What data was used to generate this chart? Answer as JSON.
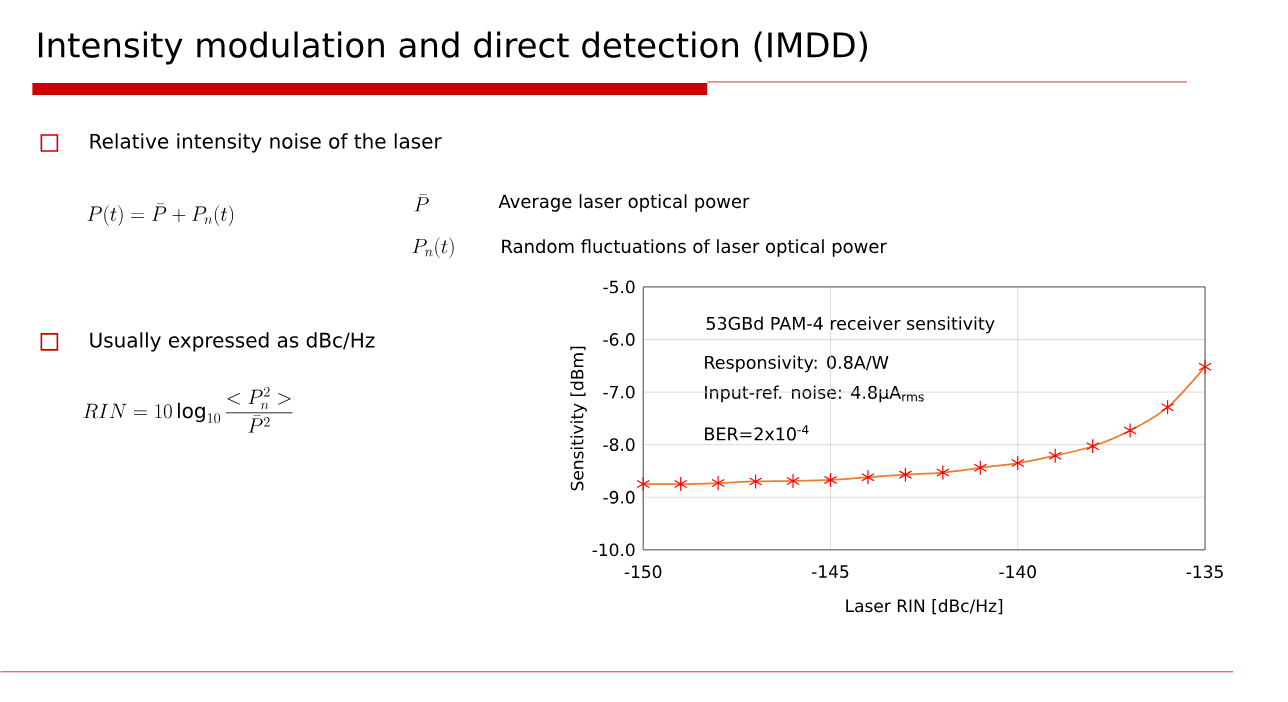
{
  "chart_data": {
    "type": "line",
    "title": "Intensity modulation and direct detection (IMDD)",
    "xlabel": "Laser RIN [dBc/Hz]",
    "ylabel": "Sensitivity [dBm]",
    "x": [
      -150,
      -149,
      -148,
      -147,
      -146,
      -145,
      -144,
      -143,
      -142,
      -141,
      -140,
      -139,
      -138,
      -137,
      -136,
      -135
    ],
    "series": [
      {
        "color": "#ed7d31",
        "colors": [
          "#ff0000",
          "#ff0000",
          "#ff0000",
          "#ff0000",
          "#ff0000",
          "#ff0000",
          "#ff0000",
          "#ff0000",
          "#ff0000",
          "#ff0000",
          "#ff0000",
          "#ff0000",
          "#ff0000",
          "#ff0000",
          "#ff0000",
          "#ff0000"
        ],
        "values": [
          -8.75,
          -8.75,
          -8.73,
          -8.7,
          -8.69,
          -8.67,
          -8.62,
          -8.57,
          -8.53,
          -8.44,
          -8.35,
          -8.21,
          -8.03,
          -7.73,
          -7.29,
          -6.52
        ]
      }
    ],
    "xlim": [
      -150,
      -135
    ],
    "xticks": [
      -150,
      -145,
      -140,
      -135
    ],
    "ylim": [
      -10,
      -5
    ],
    "yticks": [
      {
        "value": -10,
        "label": "-10.0"
      },
      {
        "value": -9,
        "label": "-9.0"
      },
      {
        "value": -8,
        "label": "-8.0"
      },
      {
        "value": -7,
        "label": "-7.0"
      },
      {
        "value": -6,
        "label": "-6.0"
      },
      {
        "value": -5,
        "label": "-5.0"
      }
    ],
    "grid": true,
    "marker": "cross",
    "line_style": "solid",
    "annotations": [
      "Relative intensity noise of the laser",
      "P(t) = \\bar{P} + P_n(t)",
      "\\bar{P}",
      "Average laser optical power",
      "P_n(t)",
      "Random fluctuations of laser optical power",
      "Usually expressed as dBc/Hz",
      "RIN = 10\\log_{10}\\frac{<P_n^2>}{\\bar{P}^2}",
      "53GBd PAM-4 receiver sensitivity",
      "Responsivity: 0.8A/W",
      "Input-ref. noise: 4.8µA$_{rms}$",
      "BER=2x10$^{-4}$"
    ]
  }
}
